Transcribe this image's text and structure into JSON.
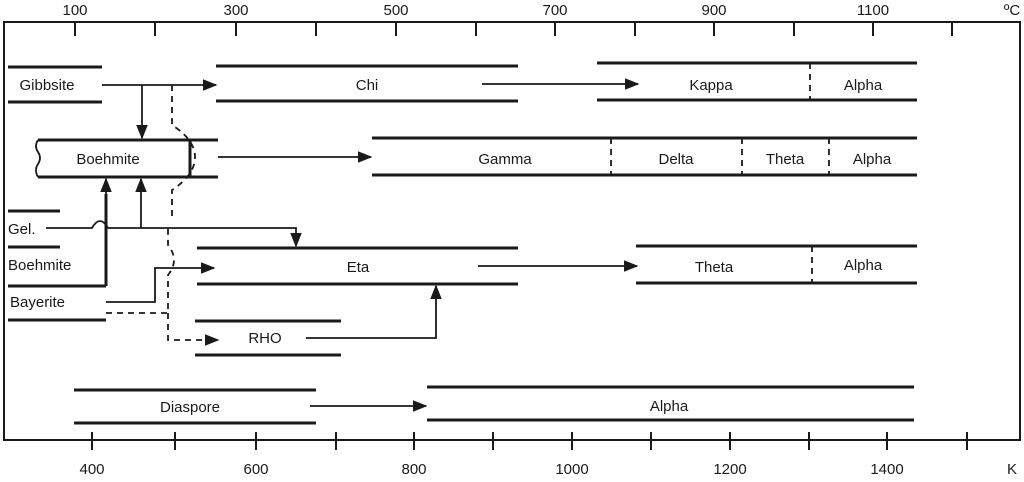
{
  "axes": {
    "top_ticks": [
      "100",
      "300",
      "500",
      "700",
      "900",
      "1100"
    ],
    "top_unit": "ºC",
    "bottom_ticks": [
      "400",
      "600",
      "800",
      "1000",
      "1200",
      "1400"
    ],
    "bottom_unit": "K"
  },
  "phases": {
    "gibbsite": "Gibbsite",
    "chi": "Chi",
    "kappa": "Kappa",
    "alpha_row1": "Alpha",
    "boehmite_row2": "Boehmite",
    "gamma": "Gamma",
    "delta": "Delta",
    "theta_row2": "Theta",
    "alpha_row2": "Alpha",
    "gel": "Gel.",
    "boehmite_row3": "Boehmite",
    "bayerite": "Bayerite",
    "eta": "Eta",
    "theta_row3": "Theta",
    "alpha_row3": "Alpha",
    "rho": "RHO",
    "diaspore": "Diaspore",
    "alpha_row5": "Alpha"
  }
}
